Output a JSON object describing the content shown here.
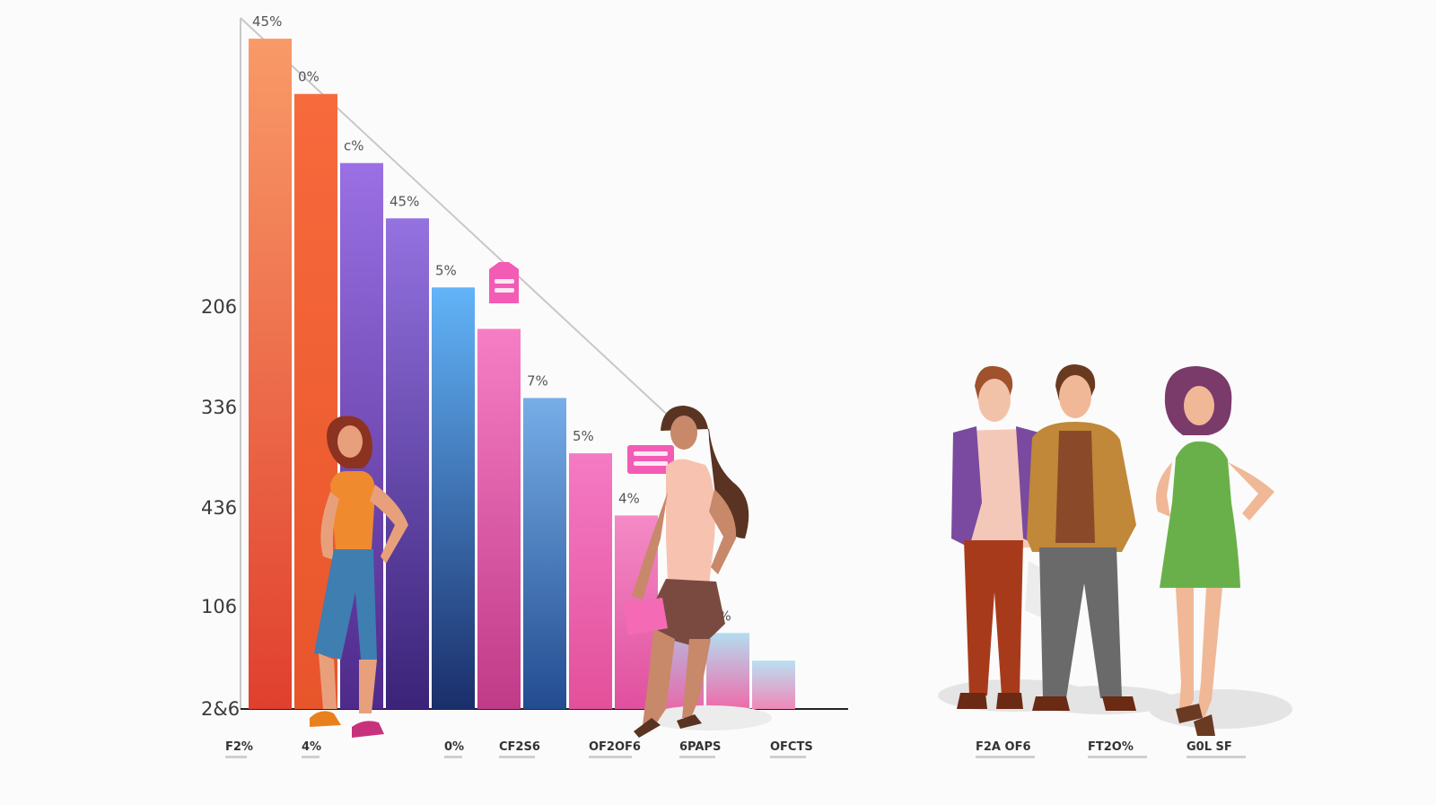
{
  "chart_data": {
    "type": "bar",
    "y_tick_labels": [
      "206",
      "336",
      "436",
      "106",
      "2&6"
    ],
    "values": [
      97,
      89,
      79,
      71,
      61,
      55,
      45,
      37,
      28,
      16,
      11,
      7
    ],
    "value_labels": [
      "45%",
      "0%",
      "c%",
      "45%",
      "5%",
      "",
      "7%",
      "5%",
      "4%",
      "",
      "1%",
      ""
    ],
    "colors_top": [
      "#f99a68",
      "#f76a3c",
      "#9a70e4",
      "#9472e0",
      "#62b4f8",
      "#f67ec4",
      "#76aee8",
      "#f57ac4",
      "#f48ac6",
      "#a8d6f0",
      "#b4ddf0",
      "#b9e0f2"
    ],
    "colors_bottom": [
      "#e0402e",
      "#e8552c",
      "#4e2a8a",
      "#3a2378",
      "#1a2e6a",
      "#c03a88",
      "#234c90",
      "#e3509a",
      "#e0509e",
      "#e66aaa",
      "#ee6aaa",
      "#f088b8"
    ],
    "x_tick_labels": [
      "F2%",
      "4%",
      "0%",
      "CF2S6",
      "OF2OF6",
      "6PAPS",
      "OFCTS"
    ],
    "people_labels": [
      "F2A OF6",
      "FT2O%",
      "G0L SF"
    ]
  }
}
